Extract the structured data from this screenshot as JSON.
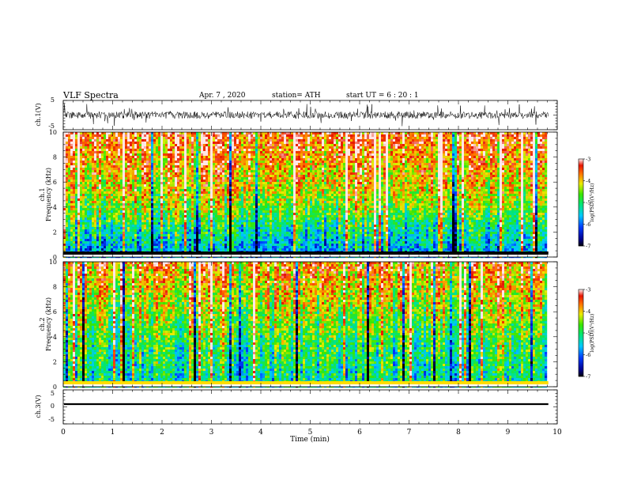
{
  "header": {
    "title": "VLF  Spectra",
    "date": "Apr. 7  , 2020",
    "station": "station= ATH",
    "start": "start  UT  =   6  : 20 : 1"
  },
  "chart_data": [
    {
      "type": "line",
      "name": "ch1-waveform",
      "ylabel": "ch.1(V)",
      "ylim": [
        -5,
        5
      ],
      "yticks": [
        "5",
        "-5"
      ],
      "xlim": [
        0,
        10
      ]
    },
    {
      "type": "heatmap",
      "name": "ch1-spectrogram",
      "ylabel_top": "ch.1",
      "ylabel": "Frequency  (kHz)",
      "ylim": [
        0,
        10
      ],
      "yticks": [
        "0",
        "2",
        "4",
        "6",
        "8",
        "10"
      ],
      "xlim": [
        0,
        10
      ],
      "colorbar": {
        "label": "log(PSD)(V²/Hz)",
        "range": [
          -7,
          -3
        ],
        "ticks": [
          "-3",
          "-4",
          "-5",
          "-6",
          "-7"
        ]
      }
    },
    {
      "type": "heatmap",
      "name": "ch2-spectrogram",
      "ylabel_top": "ch.2",
      "ylabel": "Frequency  (kHz)",
      "ylim": [
        0,
        10
      ],
      "yticks": [
        "0",
        "2",
        "4",
        "6",
        "8",
        "10"
      ],
      "xlim": [
        0,
        10
      ],
      "colorbar": {
        "label": "log(PSD)(V²/Hz)",
        "range": [
          -7,
          -3
        ],
        "ticks": [
          "-3",
          "-4",
          "-5",
          "-6",
          "-7"
        ]
      }
    },
    {
      "type": "line",
      "name": "ch3-waveform",
      "ylabel": "ch.3(V)",
      "ylim": [
        -5,
        5
      ],
      "yticks": [
        "5",
        "0",
        "-5"
      ],
      "xlim": [
        0,
        10
      ],
      "xlabel": "Time  (min)",
      "xticks": [
        "0",
        "1",
        "2",
        "3",
        "4",
        "5",
        "6",
        "7",
        "8",
        "9",
        "10"
      ]
    }
  ]
}
